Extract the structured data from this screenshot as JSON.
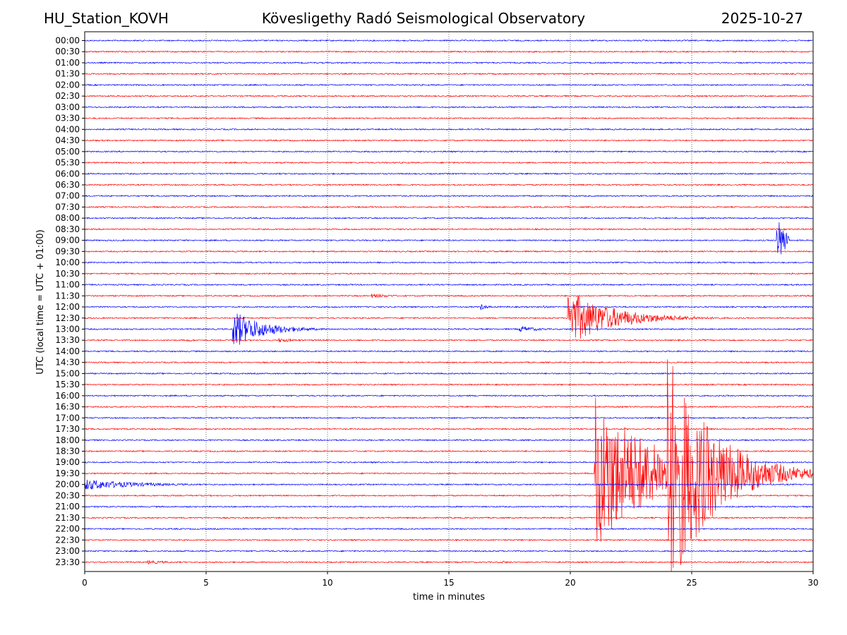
{
  "header": {
    "station": "HU_Station_KOVH",
    "title": "Kövesligethy Radó Seismological Observatory",
    "date": "2025-10-27"
  },
  "chart_data": {
    "type": "line",
    "title": "Kövesligethy Radó Seismological Observatory",
    "xlabel": "time in minutes",
    "ylabel": "UTC (local time = UTC + 01:00)",
    "xlim": [
      0,
      30
    ],
    "xticks": [
      "0",
      "5",
      "10",
      "15",
      "20",
      "25",
      "30"
    ],
    "xtick_values": [
      0,
      5,
      10,
      15,
      20,
      25,
      30
    ],
    "grid": "vertical dotted",
    "colors": [
      "#0000ff",
      "#ff0000"
    ],
    "rows": [
      "00:00",
      "00:30",
      "01:00",
      "01:30",
      "02:00",
      "02:30",
      "03:00",
      "03:30",
      "04:00",
      "04:30",
      "05:00",
      "05:30",
      "06:00",
      "06:30",
      "07:00",
      "07:30",
      "08:00",
      "08:30",
      "09:00",
      "09:30",
      "10:00",
      "10:30",
      "11:00",
      "11:30",
      "12:00",
      "12:30",
      "13:00",
      "13:30",
      "14:00",
      "14:30",
      "15:00",
      "15:30",
      "16:00",
      "16:30",
      "17:00",
      "17:30",
      "18:00",
      "18:30",
      "19:00",
      "19:30",
      "20:00",
      "20:30",
      "21:00",
      "21:30",
      "22:00",
      "22:30",
      "23:00",
      "23:30"
    ],
    "events": [
      {
        "row": 18,
        "start": 28.5,
        "dur": 0.5,
        "amp": 4.5,
        "decay": 0.4
      },
      {
        "row": 23,
        "start": 11.8,
        "dur": 1.5,
        "amp": 0.4,
        "decay": 1.0
      },
      {
        "row": 24,
        "start": 16.3,
        "dur": 0.4,
        "amp": 0.6,
        "decay": 0.3
      },
      {
        "row": 24,
        "start": 18.9,
        "dur": 0.5,
        "amp": 0.3,
        "decay": 0.3
      },
      {
        "row": 25,
        "start": 19.9,
        "dur": 10.1,
        "amp": 5.0,
        "decay": 1.8
      },
      {
        "row": 26,
        "start": 6.1,
        "dur": 5.5,
        "amp": 3.5,
        "decay": 1.2
      },
      {
        "row": 26,
        "start": 17.9,
        "dur": 1.5,
        "amp": 0.6,
        "decay": 0.8
      },
      {
        "row": 27,
        "start": 4.2,
        "dur": 0.6,
        "amp": 0.3,
        "decay": 0.4
      },
      {
        "row": 27,
        "start": 8.0,
        "dur": 1.3,
        "amp": 0.4,
        "decay": 0.8
      },
      {
        "row": 39,
        "start": 21.0,
        "dur": 9.0,
        "amp": 14.0,
        "decay": 2.5
      },
      {
        "row": 39,
        "start": 24.0,
        "dur": 6.0,
        "amp": 22.0,
        "decay": 1.8
      },
      {
        "row": 40,
        "start": 0.0,
        "dur": 7.5,
        "amp": 1.0,
        "decay": 2.2
      },
      {
        "row": 46,
        "start": 12.3,
        "dur": 0.2,
        "amp": 0.5,
        "decay": 0.1
      },
      {
        "row": 47,
        "start": 2.6,
        "dur": 1.5,
        "amp": 0.35,
        "decay": 1.0
      },
      {
        "row": 47,
        "start": 17.2,
        "dur": 0.5,
        "amp": 0.3,
        "decay": 0.3
      }
    ]
  }
}
